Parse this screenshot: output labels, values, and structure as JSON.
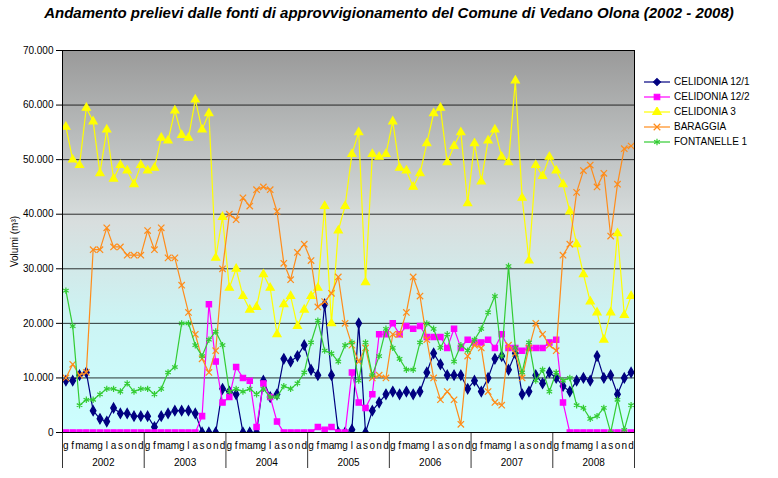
{
  "chart_data": {
    "type": "line",
    "title": "Andamento prelievi dalle fonti di approvvigionamento  del Comune di Vedano Olona (2002 - 2008)",
    "y_label": "Volumi (m³)",
    "categories": [
      "g",
      "f",
      "m",
      "a",
      "m",
      "g",
      "l",
      "a",
      "s",
      "o",
      "n",
      "d",
      "g",
      "f",
      "m",
      "a",
      "m",
      "g",
      "l",
      "a",
      "s",
      "o",
      "n",
      "d",
      "g",
      "f",
      "m",
      "a",
      "m",
      "g",
      "l",
      "a",
      "s",
      "o",
      "n",
      "d",
      "g",
      "f",
      "m",
      "a",
      "m",
      "g",
      "l",
      "a",
      "s",
      "o",
      "n",
      "d",
      "g",
      "f",
      "m",
      "a",
      "m",
      "g",
      "l",
      "a",
      "s",
      "o",
      "n",
      "d",
      "g",
      "f",
      "m",
      "a",
      "m",
      "g",
      "l",
      "a",
      "s",
      "o",
      "n",
      "d",
      "g",
      "f",
      "m",
      "a",
      "m",
      "g",
      "l",
      "a",
      "s",
      "o",
      "n",
      "d"
    ],
    "years": [
      "2002",
      "2003",
      "2004",
      "2005",
      "2006",
      "2007",
      "2008"
    ],
    "ylim": [
      0,
      70000
    ],
    "yticks": [
      0,
      {
        "value": 10000,
        "label": "10.000"
      },
      {
        "value": 20000,
        "label": "20.000"
      },
      {
        "value": 30000,
        "label": "30.000"
      },
      {
        "value": 40000,
        "label": "40.000"
      },
      {
        "value": 50000,
        "label": "50.000"
      },
      {
        "value": 60000,
        "label": "60.000"
      },
      {
        "value": 70000,
        "label": "70.000"
      }
    ],
    "grid": true,
    "legend": "right",
    "series": [
      {
        "name": "CELIDONIA 12/1",
        "color": "#000080",
        "marker": "diamond",
        "values": [
          9500,
          9500,
          10500,
          11000,
          4000,
          2500,
          2000,
          4500,
          3500,
          3500,
          3000,
          3000,
          3000,
          1000,
          3000,
          3500,
          4000,
          4000,
          4000,
          3500,
          0,
          0,
          0,
          8000,
          7500,
          7000,
          0,
          0,
          0,
          9500,
          6500,
          7000,
          13500,
          13000,
          14000,
          16000,
          11500,
          10500,
          23500,
          10500,
          0,
          0,
          500,
          20000,
          0,
          4000,
          5500,
          7000,
          7500,
          7000,
          7500,
          7000,
          7500,
          11000,
          14500,
          12500,
          10500,
          10500,
          10500,
          8000,
          9500,
          7500,
          10000,
          13500,
          14000,
          11500,
          14500,
          7000,
          7500,
          10500,
          9000,
          11000,
          10000,
          8500,
          7500,
          9500,
          10000,
          9500,
          14000,
          10000,
          10500,
          7000,
          10000,
          11000
        ]
      },
      {
        "name": "CELIDONIA 12/2",
        "color": "#ff00ff",
        "marker": "square",
        "values": [
          0,
          0,
          0,
          0,
          0,
          0,
          0,
          0,
          0,
          0,
          0,
          0,
          0,
          0,
          0,
          0,
          0,
          0,
          0,
          0,
          3000,
          23500,
          13000,
          5500,
          6500,
          12000,
          10000,
          9500,
          1000,
          9000,
          6500,
          2000,
          0,
          0,
          0,
          0,
          0,
          1000,
          500,
          1000,
          0,
          0,
          11000,
          5500,
          4500,
          7000,
          18000,
          18000,
          20000,
          18000,
          19500,
          19000,
          19500,
          17500,
          17500,
          17500,
          15500,
          19000,
          15500,
          17000,
          16500,
          16500,
          17000,
          15500,
          18000,
          15500,
          15500,
          15000,
          15500,
          15500,
          15500,
          16500,
          17000,
          5500,
          0,
          0,
          0,
          0,
          0,
          0,
          0,
          0,
          0,
          0
        ]
      },
      {
        "name": "CELIDONIA 3",
        "color": "#ffff00",
        "marker": "triangle",
        "values": [
          56000,
          50000,
          49000,
          59500,
          57000,
          47500,
          55500,
          46500,
          49000,
          48000,
          45500,
          49000,
          48000,
          48500,
          54000,
          53500,
          59000,
          54500,
          54000,
          61000,
          55500,
          58500,
          32000,
          39500,
          26500,
          30000,
          25000,
          22500,
          23000,
          29000,
          26500,
          18000,
          23500,
          25000,
          19500,
          22500,
          25000,
          26500,
          41500,
          20000,
          37000,
          41500,
          51000,
          55000,
          27500,
          51000,
          50500,
          51000,
          57000,
          48500,
          48000,
          45000,
          47500,
          53000,
          58500,
          59500,
          49500,
          52500,
          55000,
          42000,
          53000,
          46000,
          53500,
          55500,
          50500,
          49500,
          64500,
          43000,
          31500,
          49000,
          47000,
          50500,
          48000,
          45500,
          40500,
          34500,
          29000,
          24000,
          22000,
          17000,
          22000,
          36500,
          21500,
          25000
        ]
      },
      {
        "name": "BARAGGIA",
        "color": "#ff8c1a",
        "marker": "x",
        "values": [
          10000,
          12500,
          10500,
          11000,
          33500,
          33500,
          37500,
          34000,
          34000,
          32500,
          32500,
          32500,
          37000,
          33500,
          37500,
          32000,
          32000,
          27000,
          22000,
          18000,
          13500,
          11000,
          15000,
          30000,
          40000,
          39000,
          43000,
          41500,
          44500,
          45000,
          44500,
          40500,
          31000,
          28000,
          33000,
          34500,
          31500,
          23000,
          24000,
          25500,
          28500,
          20000,
          16000,
          13000,
          15500,
          10000,
          10500,
          10000,
          18000,
          18000,
          22000,
          28500,
          25000,
          17000,
          10000,
          6000,
          7500,
          6000,
          1500,
          14000,
          16000,
          15500,
          7500,
          5500,
          5000,
          16000,
          14500,
          10000,
          15500,
          20000,
          18000,
          16000,
          15000,
          32500,
          34500,
          44000,
          48000,
          49000,
          45000,
          47500,
          36000,
          45500,
          52000,
          52500
        ]
      },
      {
        "name": "FONTANELLE 1",
        "color": "#33cc33",
        "marker": "asterisk",
        "values": [
          26000,
          19500,
          5000,
          6000,
          6000,
          7000,
          8000,
          8000,
          7500,
          9000,
          7500,
          8000,
          8000,
          7000,
          8000,
          11000,
          12000,
          20000,
          20000,
          16000,
          14000,
          17000,
          18500,
          16000,
          7500,
          8000,
          7500,
          8000,
          7000,
          8000,
          6500,
          6500,
          8500,
          8000,
          9000,
          11000,
          16500,
          20500,
          15000,
          14500,
          13000,
          16000,
          16500,
          9500,
          16500,
          10500,
          14000,
          19000,
          15500,
          13500,
          11500,
          11500,
          16500,
          20000,
          19000,
          15500,
          18000,
          13000,
          16000,
          15000,
          17000,
          19000,
          22000,
          25000,
          14000,
          30500,
          15500,
          11000,
          16500,
          9500,
          11500,
          7500,
          11000,
          9500,
          10000,
          5000,
          4500,
          2500,
          3000,
          4500,
          0,
          6000,
          500,
          5000
        ]
      }
    ]
  }
}
